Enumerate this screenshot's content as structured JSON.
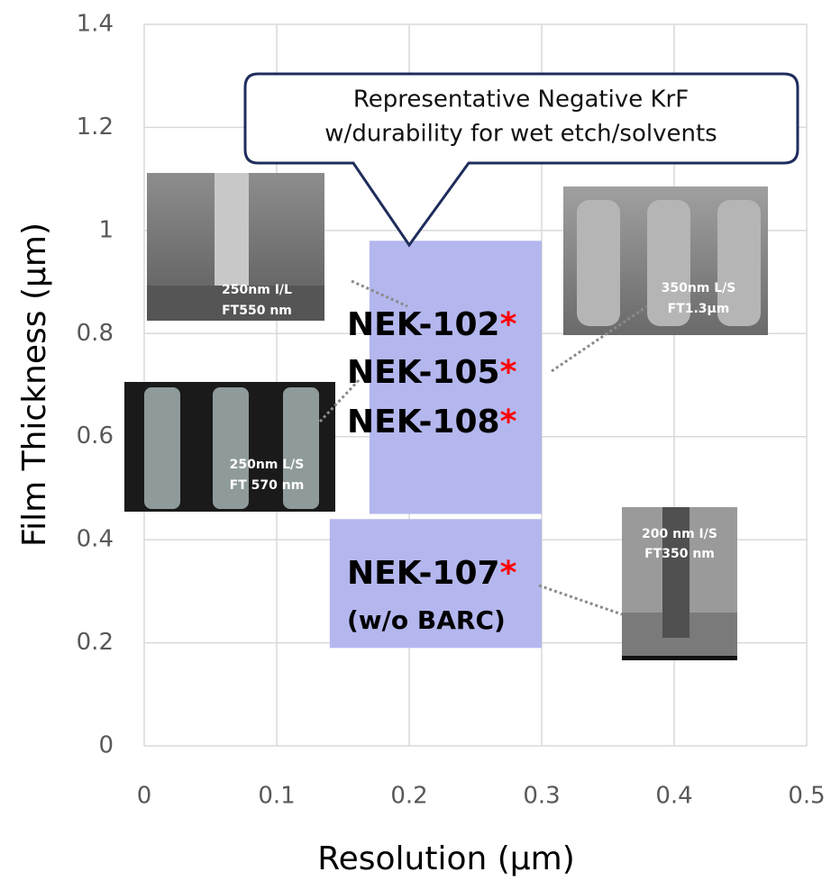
{
  "chart_data": {
    "type": "region",
    "x_label": "Resolution (µm)",
    "y_label": "Film Thickness (µm)",
    "xlim": [
      0,
      0.5
    ],
    "ylim": [
      0,
      1.4
    ],
    "xticks": [
      0,
      0.1,
      0.2,
      0.3,
      0.4,
      0.5
    ],
    "yticks": [
      0,
      0.2,
      0.4,
      0.6,
      0.8,
      1,
      1.2,
      1.4
    ],
    "grid": true,
    "regions": [
      {
        "xlim": [
          0.17,
          0.3
        ],
        "ylim": [
          0.45,
          0.98
        ],
        "color": "#b4b7ee",
        "labels": [
          "NEK-102",
          "NEK-105",
          "NEK-108"
        ]
      },
      {
        "xlim": [
          0.14,
          0.3
        ],
        "ylim": [
          0.19,
          0.44
        ],
        "color": "#b4b7ee",
        "labels": [
          "NEK-107"
        ],
        "note": "(w/o BARC)"
      }
    ],
    "label_marker": "*",
    "marker_color": "#ff0000",
    "callout": [
      "Representative Negative KrF",
      "w/durability for wet etch/solvents"
    ],
    "images": [
      {
        "lines": [
          "250nm I/L",
          "FT550 nm"
        ]
      },
      {
        "lines": [
          "350nm L/S",
          "FT1.3µm"
        ]
      },
      {
        "lines": [
          "250nm L/S",
          "FT 570 nm"
        ]
      },
      {
        "lines": [
          "200 nm I/S",
          "FT350 nm"
        ]
      }
    ]
  }
}
